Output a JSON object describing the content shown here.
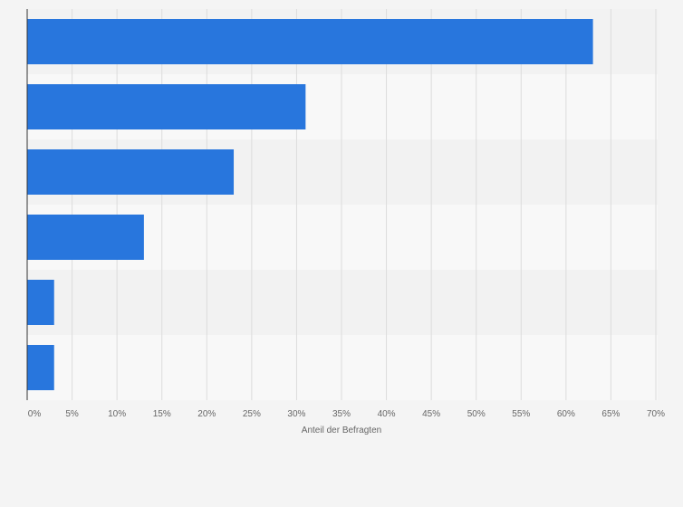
{
  "chart_data": {
    "type": "bar",
    "orientation": "horizontal",
    "categories": [
      "",
      "",
      "",
      "",
      "",
      ""
    ],
    "values": [
      63,
      31,
      23,
      13,
      3,
      3
    ],
    "xlabel": "Anteil der Befragten",
    "ylabel": "",
    "xlim": [
      0,
      70
    ],
    "xticks": [
      0,
      5,
      10,
      15,
      20,
      25,
      30,
      35,
      40,
      45,
      50,
      55,
      60,
      65,
      70
    ],
    "tick_suffix": "%",
    "grid": true,
    "legend": "none",
    "colors": {
      "bar": "#2876dd",
      "band_a": "#f2f2f2",
      "band_b": "#f8f8f8",
      "grid": "#dcdcdc",
      "axis": "#333333",
      "text": "#666666",
      "background": "#f4f4f4"
    }
  }
}
